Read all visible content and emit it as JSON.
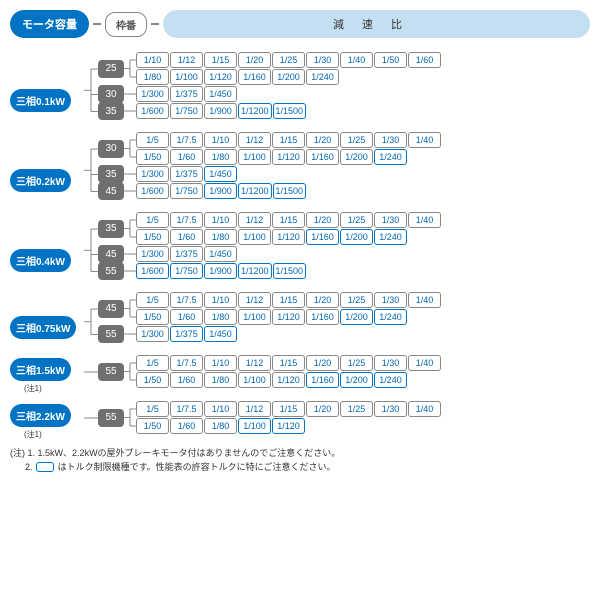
{
  "header": {
    "motor_label": "モータ容量",
    "frame_label": "枠番",
    "ratio_label": "減速比"
  },
  "groups": [
    {
      "motor": "三相0.1kW",
      "note": null,
      "frames": [
        {
          "frame": "25",
          "rows": [
            {
              "ratios": [
                "1/10",
                "1/12",
                "1/15",
                "1/20",
                "1/25",
                "1/30",
                "1/40",
                "1/50",
                "1/60"
              ],
              "hl": []
            },
            {
              "ratios": [
                "1/80",
                "1/100",
                "1/120",
                "1/160",
                "1/200",
                "1/240"
              ],
              "hl": []
            }
          ]
        },
        {
          "frame": "30",
          "rows": [
            {
              "ratios": [
                "1/300",
                "1/375",
                "1/450"
              ],
              "hl": []
            }
          ]
        },
        {
          "frame": "35",
          "rows": [
            {
              "ratios": [
                "1/600",
                "1/750",
                "1/900",
                "1/1200",
                "1/1500"
              ],
              "hl": [
                3,
                4
              ]
            }
          ]
        }
      ]
    },
    {
      "motor": "三相0.2kW",
      "note": null,
      "frames": [
        {
          "frame": "30",
          "rows": [
            {
              "ratios": [
                "1/5",
                "1/7.5",
                "1/10",
                "1/12",
                "1/15",
                "1/20",
                "1/25",
                "1/30",
                "1/40"
              ],
              "hl": []
            },
            {
              "ratios": [
                "1/50",
                "1/60",
                "1/80",
                "1/100",
                "1/120",
                "1/160",
                "1/200",
                "1/240"
              ],
              "hl": [
                7
              ]
            }
          ]
        },
        {
          "frame": "35",
          "rows": [
            {
              "ratios": [
                "1/300",
                "1/375",
                "1/450"
              ],
              "hl": [
                2
              ]
            }
          ]
        },
        {
          "frame": "45",
          "rows": [
            {
              "ratios": [
                "1/600",
                "1/750",
                "1/900",
                "1/1200",
                "1/1500"
              ],
              "hl": [
                2,
                3,
                4
              ]
            }
          ]
        }
      ]
    },
    {
      "motor": "三相0.4kW",
      "note": null,
      "frames": [
        {
          "frame": "35",
          "rows": [
            {
              "ratios": [
                "1/5",
                "1/7.5",
                "1/10",
                "1/12",
                "1/15",
                "1/20",
                "1/25",
                "1/30",
                "1/40"
              ],
              "hl": []
            },
            {
              "ratios": [
                "1/50",
                "1/60",
                "1/80",
                "1/100",
                "1/120",
                "1/160",
                "1/200",
                "1/240"
              ],
              "hl": [
                5,
                6,
                7
              ]
            }
          ]
        },
        {
          "frame": "45",
          "rows": [
            {
              "ratios": [
                "1/300",
                "1/375",
                "1/450"
              ],
              "hl": []
            }
          ]
        },
        {
          "frame": "55",
          "rows": [
            {
              "ratios": [
                "1/600",
                "1/750",
                "1/900",
                "1/1200",
                "1/1500"
              ],
              "hl": [
                0,
                1,
                2,
                3,
                4
              ]
            }
          ]
        }
      ]
    },
    {
      "motor": "三相0.75kW",
      "note": null,
      "frames": [
        {
          "frame": "45",
          "rows": [
            {
              "ratios": [
                "1/5",
                "1/7.5",
                "1/10",
                "1/12",
                "1/15",
                "1/20",
                "1/25",
                "1/30",
                "1/40"
              ],
              "hl": []
            },
            {
              "ratios": [
                "1/50",
                "1/60",
                "1/80",
                "1/100",
                "1/120",
                "1/160",
                "1/200",
                "1/240"
              ],
              "hl": [
                6,
                7
              ]
            }
          ]
        },
        {
          "frame": "55",
          "rows": [
            {
              "ratios": [
                "1/300",
                "1/375",
                "1/450"
              ],
              "hl": [
                1,
                2
              ]
            }
          ]
        }
      ]
    },
    {
      "motor": "三相1.5kW",
      "note": "(注1)",
      "frames": [
        {
          "frame": "55",
          "rows": [
            {
              "ratios": [
                "1/5",
                "1/7.5",
                "1/10",
                "1/12",
                "1/15",
                "1/20",
                "1/25",
                "1/30",
                "1/40"
              ],
              "hl": []
            },
            {
              "ratios": [
                "1/50",
                "1/60",
                "1/80",
                "1/100",
                "1/120",
                "1/160",
                "1/200",
                "1/240"
              ],
              "hl": [
                5,
                6,
                7
              ]
            }
          ]
        }
      ]
    },
    {
      "motor": "三相2.2kW",
      "note": "(注1)",
      "frames": [
        {
          "frame": "55",
          "rows": [
            {
              "ratios": [
                "1/5",
                "1/7.5",
                "1/10",
                "1/12",
                "1/15",
                "1/20",
                "1/25",
                "1/30",
                "1/40"
              ],
              "hl": []
            },
            {
              "ratios": [
                "1/50",
                "1/60",
                "1/80",
                "1/100",
                "1/120"
              ],
              "hl": [
                3,
                4
              ]
            }
          ]
        }
      ]
    }
  ],
  "footnotes": {
    "prefix": "(注)",
    "l1_num": "1.",
    "l1": "1.5kW、2.2kWの屋外ブレーキモータ付はありませんのでご注意ください。",
    "l2_num": "2.",
    "l2a": "はトルク制限機種です。性能表の許容トルクに特にご注意ください。"
  },
  "colors": {
    "accent": "#0073c4",
    "frame_bg": "#6f6f6f",
    "header_ratio_bg": "#c5dff2",
    "ratio_text": "#0066b3",
    "border": "#888"
  }
}
